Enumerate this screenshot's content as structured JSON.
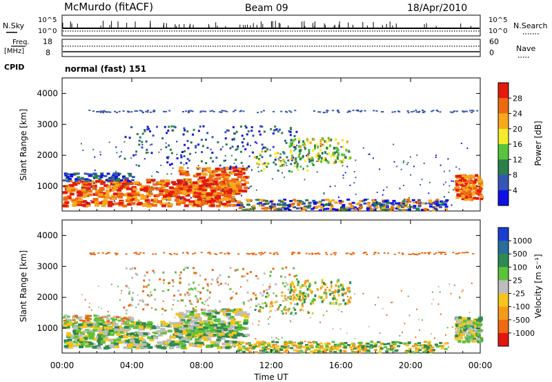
{
  "header": {
    "station": "McMurdo (fitACF)",
    "beam": "Beam 09",
    "date": "18/Apr/2010"
  },
  "top_panels": {
    "nsky_label": "N.Sky",
    "nsearch_label": "N.Search",
    "nsky_ticks": [
      "10^5",
      "10^0"
    ],
    "nsearch_ticks": [
      "10^5",
      "10^0"
    ],
    "freq_label": "Freq.",
    "freq_unit": "[MHz]",
    "freq_ticks": [
      "18",
      "8"
    ],
    "nave_label": "Nave",
    "nave_ticks": [
      "60",
      "0"
    ],
    "cpid_label": "CPID",
    "cpid_value": "normal (fast) 151"
  },
  "chart_data": [
    {
      "type": "heatmap",
      "name": "power",
      "ylabel": "Slant Range [km]",
      "ylim": [
        200,
        4500
      ],
      "yticks": [
        1000,
        2000,
        3000,
        4000
      ],
      "xlim": [
        "00:00",
        "24:00"
      ],
      "colorbar_label": "Power [dB]",
      "colorbar_ticks": [
        4,
        8,
        12,
        16,
        20,
        24,
        28
      ],
      "colorbar_colors": [
        "#1010e6",
        "#3356b4",
        "#2a7f4a",
        "#58c43a",
        "#f5ec2a",
        "#f7a81c",
        "#ee6a10",
        "#e31a0e"
      ]
    },
    {
      "type": "heatmap",
      "name": "velocity",
      "ylabel": "Slant Range [km]",
      "ylim": [
        200,
        4500
      ],
      "yticks": [
        1000,
        2000,
        3000,
        4000
      ],
      "xlim": [
        "00:00",
        "24:00"
      ],
      "xlabel": "Time UT",
      "xticks": [
        "00:00",
        "04:00",
        "08:00",
        "12:00",
        "16:00",
        "20:00",
        "00:00"
      ],
      "colorbar_label": "Velocity [m s⁻¹]",
      "colorbar_ticks": [
        1000,
        500,
        100,
        25,
        -25,
        -100,
        -500,
        -1000
      ],
      "colorbar_colors": [
        "#1a3fd0",
        "#2a6e9a",
        "#2e8a52",
        "#5cc23a",
        "#bdbdbd",
        "#f6c41a",
        "#f59a1c",
        "#ef6a12",
        "#e3170e"
      ]
    }
  ]
}
